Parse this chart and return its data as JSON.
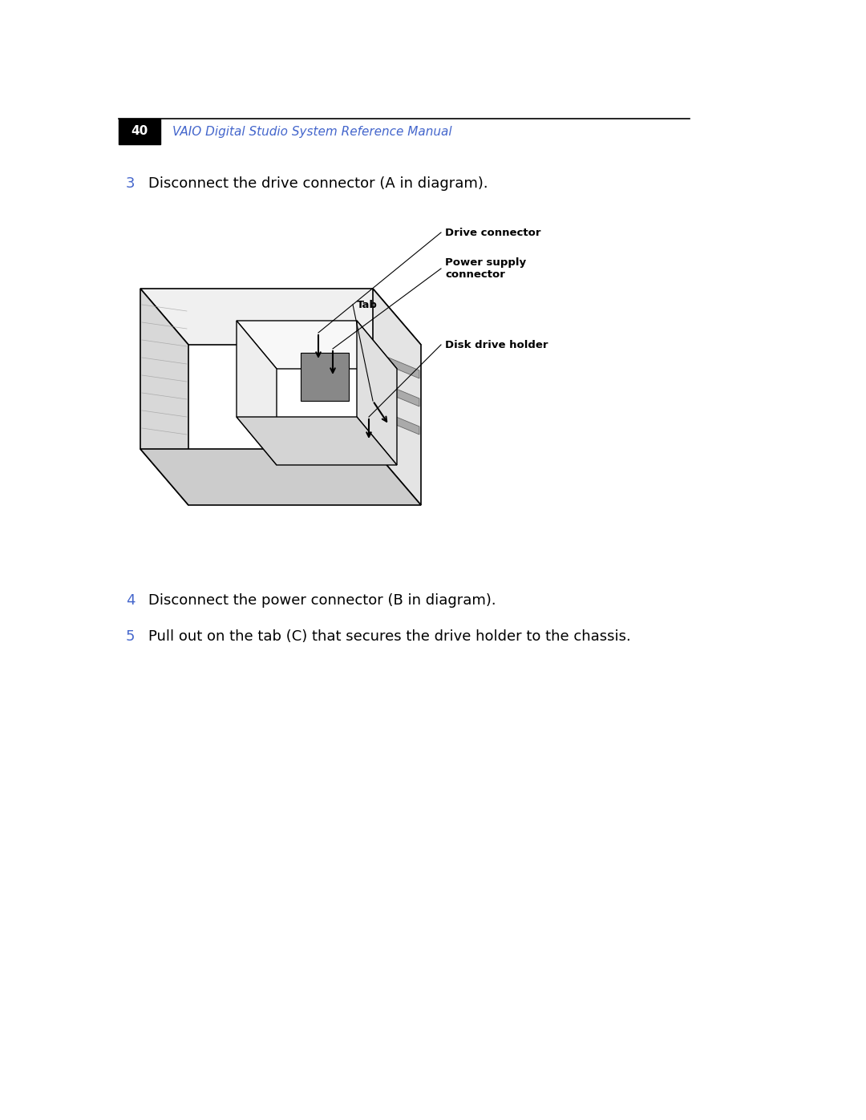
{
  "page_width": 10.8,
  "page_height": 13.97,
  "bg_color": "#ffffff",
  "header_bar_color": "#000000",
  "header_page_num": "40",
  "header_page_num_color": "#ffffff",
  "header_title": "VAIO Digital Studio System Reference Manual",
  "header_title_color": "#4466cc",
  "header_title_italic": true,
  "header_line_color": "#000000",
  "step3_num": "3",
  "step3_num_color": "#4466cc",
  "step3_text": "Disconnect the drive connector (A in diagram).",
  "step3_text_color": "#000000",
  "step4_num": "4",
  "step4_num_color": "#4466cc",
  "step4_text": "Disconnect the power connector (B in diagram).",
  "step4_text_color": "#000000",
  "step5_num": "5",
  "step5_num_color": "#4466cc",
  "step5_text": "Pull out on the tab (C) that secures the drive holder to the chassis.",
  "step5_text_color": "#000000",
  "label_drive_connector": "Drive connector",
  "label_power_supply": "Power supply\nconnector",
  "label_tab": "Tab",
  "label_disk_drive_holder": "Disk drive holder",
  "label_color": "#000000",
  "label_fontsize": 9.5
}
